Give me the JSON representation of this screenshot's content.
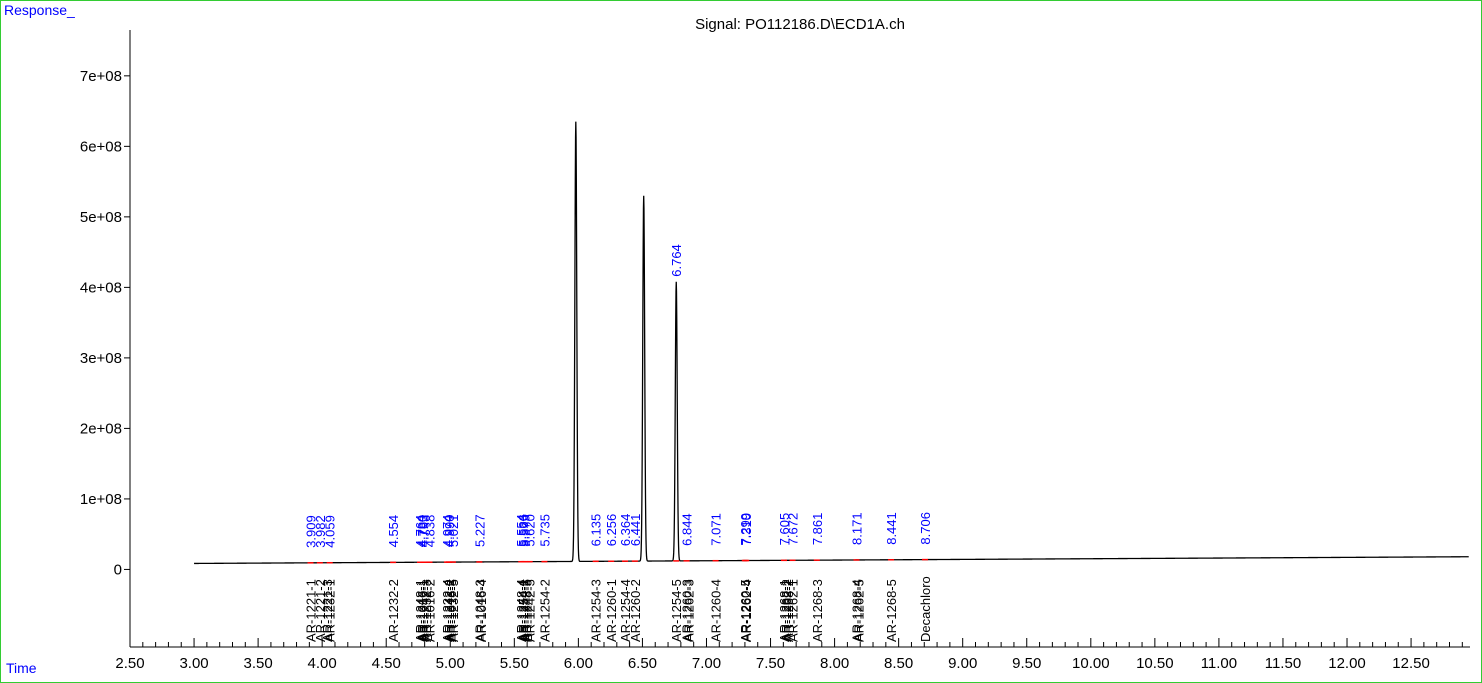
{
  "window": {
    "y_axis_label": "Response_",
    "x_axis_label": "Time"
  },
  "colors": {
    "axis": "#000000",
    "trace": "#000000",
    "rt_label": "#0000ff",
    "compound_label": "#000000",
    "baseline_marker": "#ff0000",
    "frame": "#33cc33"
  },
  "chart_data": {
    "type": "line",
    "title": "Signal: PO112186.D\\ECD1A.ch",
    "xlabel": "Time",
    "ylabel": "Response_",
    "xlim": [
      2.5,
      12.96
    ],
    "ylim": [
      -110000000,
      765000000
    ],
    "x_ticks": [
      "2.50",
      "3.00",
      "3.50",
      "4.00",
      "4.50",
      "5.00",
      "5.50",
      "6.00",
      "6.50",
      "7.00",
      "7.50",
      "8.00",
      "8.50",
      "9.00",
      "9.50",
      "10.00",
      "10.50",
      "11.00",
      "11.50",
      "12.00",
      "12.50"
    ],
    "y_ticks": [
      "0",
      "1e+08",
      "2e+08",
      "3e+08",
      "4e+08",
      "5e+08",
      "6e+08",
      "7e+08"
    ],
    "baseline": [
      [
        3.0,
        8500000
      ],
      [
        12.95,
        18000000
      ]
    ],
    "major_peaks": [
      {
        "rt": 5.98,
        "height": 635000000
      },
      {
        "rt": 6.51,
        "height": 530000000
      },
      {
        "rt": 6.764,
        "height": 408000000
      }
    ],
    "rt_labels": [
      {
        "rt": 3.909,
        "label": "3.909"
      },
      {
        "rt": 3.982,
        "label": "3.982"
      },
      {
        "rt": 4.059,
        "label": "4.059"
      },
      {
        "rt": 4.554,
        "label": "4.554"
      },
      {
        "rt": 4.764,
        "label": "4.764"
      },
      {
        "rt": 4.78,
        "label": "4.780"
      },
      {
        "rt": 4.793,
        "label": "4.793"
      },
      {
        "rt": 4.838,
        "label": "4.838"
      },
      {
        "rt": 4.974,
        "label": "4.974"
      },
      {
        "rt": 4.99,
        "label": "4.990"
      },
      {
        "rt": 5.021,
        "label": "5.021"
      },
      {
        "rt": 5.227,
        "label": "5.227"
      },
      {
        "rt": 5.554,
        "label": "5.554"
      },
      {
        "rt": 5.566,
        "label": "5.566"
      },
      {
        "rt": 5.579,
        "label": "5.579"
      },
      {
        "rt": 5.62,
        "label": "5.620"
      },
      {
        "rt": 5.735,
        "label": "5.735"
      },
      {
        "rt": 6.135,
        "label": "6.135"
      },
      {
        "rt": 6.256,
        "label": "6.256"
      },
      {
        "rt": 6.364,
        "label": "6.364"
      },
      {
        "rt": 6.441,
        "label": "6.441"
      },
      {
        "rt": 6.764,
        "label": "6.764",
        "height": 408000000
      },
      {
        "rt": 6.844,
        "label": "6.844"
      },
      {
        "rt": 7.071,
        "label": "7.071"
      },
      {
        "rt": 7.299,
        "label": "7.299"
      },
      {
        "rt": 7.31,
        "label": "7.310"
      },
      {
        "rt": 7.605,
        "label": "7.605"
      },
      {
        "rt": 7.672,
        "label": "7.672"
      },
      {
        "rt": 7.861,
        "label": "7.861"
      },
      {
        "rt": 8.171,
        "label": "8.171"
      },
      {
        "rt": 8.441,
        "label": "8.441"
      },
      {
        "rt": 8.706,
        "label": "8.706"
      }
    ],
    "compound_labels": [
      {
        "rt": 3.909,
        "label": "AR-1221-1"
      },
      {
        "rt": 3.982,
        "label": "AR-1221-2"
      },
      {
        "rt": 4.038,
        "label": "AR-1221-3"
      },
      {
        "rt": 4.059,
        "label": "AR-1232-1"
      },
      {
        "rt": 4.554,
        "label": "AR-1232-2"
      },
      {
        "rt": 4.764,
        "label": "AR-1248-1"
      },
      {
        "rt": 4.78,
        "label": "AR-1016-1"
      },
      {
        "rt": 4.793,
        "label": "AR-1242-1"
      },
      {
        "rt": 4.81,
        "label": "AR-1232-3"
      },
      {
        "rt": 4.838,
        "label": "AR-1016-2"
      },
      {
        "rt": 4.974,
        "label": "AR-1232-4"
      },
      {
        "rt": 4.99,
        "label": "AR-1242-2"
      },
      {
        "rt": 5.005,
        "label": "AR-1016-3"
      },
      {
        "rt": 5.021,
        "label": "AR-1232-5"
      },
      {
        "rt": 5.227,
        "label": "AR-1248-3"
      },
      {
        "rt": 5.24,
        "label": "AR-1016-4"
      },
      {
        "rt": 5.554,
        "label": "AR-1248-4"
      },
      {
        "rt": 5.566,
        "label": "AR-1254-1"
      },
      {
        "rt": 5.579,
        "label": "AR-1242-3"
      },
      {
        "rt": 5.595,
        "label": "AR-1248-5"
      },
      {
        "rt": 5.62,
        "label": "AR-1242-5"
      },
      {
        "rt": 5.735,
        "label": "AR-1254-2"
      },
      {
        "rt": 6.135,
        "label": "AR-1254-3"
      },
      {
        "rt": 6.256,
        "label": "AR-1260-1"
      },
      {
        "rt": 6.364,
        "label": "AR-1254-4"
      },
      {
        "rt": 6.441,
        "label": "AR-1260-2"
      },
      {
        "rt": 6.764,
        "label": "AR-1254-5"
      },
      {
        "rt": 6.844,
        "label": "AR-1260-3"
      },
      {
        "rt": 6.858,
        "label": "AR-1262-3"
      },
      {
        "rt": 7.071,
        "label": "AR-1260-4"
      },
      {
        "rt": 7.299,
        "label": "AR-1260-5"
      },
      {
        "rt": 7.31,
        "label": "AR-1262-4"
      },
      {
        "rt": 7.605,
        "label": "AR-1268-1"
      },
      {
        "rt": 7.62,
        "label": "AR-1262-2"
      },
      {
        "rt": 7.635,
        "label": "AR-1268-2"
      },
      {
        "rt": 7.672,
        "label": "AR-1262-1"
      },
      {
        "rt": 7.861,
        "label": "AR-1268-3"
      },
      {
        "rt": 8.171,
        "label": "AR-1268-4"
      },
      {
        "rt": 8.185,
        "label": "AR-1262-5"
      },
      {
        "rt": 8.441,
        "label": "AR-1268-5"
      },
      {
        "rt": 8.706,
        "label": "Decachloro"
      }
    ]
  }
}
